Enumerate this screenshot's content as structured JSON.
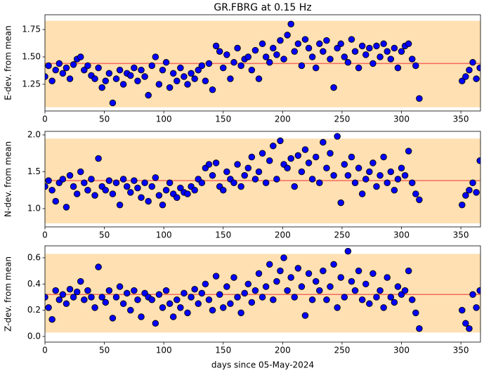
{
  "title": "GR.FBRG at 0.15 Hz",
  "chart_data": [
    {
      "type": "scatter",
      "ylabel": "E-dev. from mean",
      "color": "#0000ff",
      "band": [
        1.04,
        1.83
      ],
      "band_color": "#ffe0b2",
      "reference_line": 1.44,
      "line_color": "#f26b5b",
      "xlim": [
        0,
        366.5
      ],
      "ylim": [
        1.006,
        1.885
      ],
      "xticks": [
        0,
        50,
        100,
        150,
        200,
        250,
        300,
        350
      ],
      "yticks": [
        1.25,
        {
          "value": 1.5,
          "label": "1.50"
        },
        1.75
      ],
      "x": [
        0,
        3,
        6,
        9,
        12,
        15,
        18,
        21,
        24,
        27,
        30,
        33,
        36,
        39,
        42,
        45,
        48,
        51,
        54,
        57,
        60,
        63,
        66,
        69,
        72,
        75,
        78,
        81,
        84,
        87,
        90,
        93,
        96,
        99,
        102,
        105,
        108,
        111,
        114,
        117,
        120,
        123,
        126,
        129,
        132,
        135,
        138,
        141,
        144,
        147,
        150,
        153,
        156,
        159,
        162,
        165,
        168,
        171,
        174,
        177,
        180,
        183,
        186,
        189,
        192,
        195,
        198,
        201,
        204,
        207,
        210,
        213,
        216,
        219,
        222,
        225,
        228,
        231,
        234,
        237,
        240,
        243,
        246,
        249,
        252,
        255,
        258,
        261,
        264,
        267,
        270,
        273,
        276,
        279,
        282,
        285,
        288,
        291,
        294,
        297,
        300,
        303,
        306,
        309,
        312,
        315,
        351,
        354,
        357,
        360,
        363,
        366
      ],
      "values": [
        1.32,
        1.42,
        1.28,
        1.38,
        1.44,
        1.35,
        1.4,
        1.3,
        1.43,
        1.48,
        1.5,
        1.38,
        1.42,
        1.33,
        1.3,
        1.4,
        1.22,
        1.28,
        1.35,
        1.08,
        1.3,
        1.38,
        1.25,
        1.35,
        1.33,
        1.4,
        1.28,
        1.38,
        1.32,
        1.15,
        1.42,
        1.5,
        1.25,
        1.38,
        1.45,
        1.22,
        1.35,
        1.28,
        1.4,
        1.32,
        1.25,
        1.35,
        1.3,
        1.38,
        1.42,
        1.28,
        1.44,
        1.2,
        1.6,
        1.55,
        1.4,
        1.52,
        1.3,
        1.45,
        1.58,
        1.42,
        1.48,
        1.5,
        1.38,
        1.56,
        1.3,
        1.62,
        1.5,
        1.45,
        1.58,
        1.52,
        1.65,
        1.48,
        1.7,
        1.8,
        1.55,
        1.62,
        1.42,
        1.66,
        1.58,
        1.5,
        1.4,
        1.62,
        1.55,
        1.65,
        1.48,
        1.22,
        1.58,
        1.62,
        1.5,
        1.45,
        1.66,
        1.55,
        1.4,
        1.6,
        1.52,
        1.58,
        1.44,
        1.6,
        1.5,
        1.62,
        1.55,
        1.48,
        1.58,
        1.4,
        1.55,
        1.6,
        1.62,
        1.48,
        1.42,
        1.12,
        1.28,
        1.32,
        1.38,
        1.45,
        1.3,
        1.4
      ]
    },
    {
      "type": "scatter",
      "ylabel": "N-dev. from mean",
      "color": "#0000ff",
      "band": [
        0.8,
        1.95
      ],
      "band_color": "#ffe0b2",
      "reference_line": 1.38,
      "line_color": "#f26b5b",
      "xlim": [
        0,
        366.5
      ],
      "ylim": [
        0.752,
        2.048
      ],
      "xticks": [
        0,
        50,
        100,
        150,
        200,
        250,
        300,
        350
      ],
      "yticks": [
        {
          "value": 1.0,
          "label": "1.0"
        },
        {
          "value": 1.5,
          "label": "1.5"
        },
        {
          "value": 2.0,
          "label": "2.0"
        }
      ],
      "x": [
        0,
        3,
        6,
        9,
        12,
        15,
        18,
        21,
        24,
        27,
        30,
        33,
        36,
        39,
        42,
        45,
        48,
        51,
        54,
        57,
        60,
        63,
        66,
        69,
        72,
        75,
        78,
        81,
        84,
        87,
        90,
        93,
        96,
        99,
        102,
        105,
        108,
        111,
        114,
        117,
        120,
        123,
        126,
        129,
        132,
        135,
        138,
        141,
        144,
        147,
        150,
        153,
        156,
        159,
        162,
        165,
        168,
        171,
        174,
        177,
        180,
        183,
        186,
        189,
        192,
        195,
        198,
        201,
        204,
        207,
        210,
        213,
        216,
        219,
        222,
        225,
        228,
        231,
        234,
        237,
        240,
        243,
        246,
        249,
        252,
        255,
        258,
        261,
        264,
        267,
        270,
        273,
        276,
        279,
        282,
        285,
        288,
        291,
        294,
        297,
        300,
        303,
        306,
        309,
        312,
        315,
        351,
        354,
        357,
        360,
        363,
        366
      ],
      "values": [
        1.3,
        1.38,
        1.25,
        1.1,
        1.35,
        1.4,
        1.02,
        1.45,
        1.3,
        1.2,
        1.5,
        1.35,
        1.25,
        1.4,
        1.18,
        1.68,
        1.3,
        1.25,
        1.38,
        1.2,
        1.35,
        1.05,
        1.4,
        1.3,
        1.22,
        1.38,
        1.28,
        1.15,
        1.35,
        1.1,
        1.3,
        1.42,
        1.18,
        1.05,
        1.25,
        1.35,
        1.2,
        1.15,
        1.28,
        1.22,
        1.2,
        1.3,
        1.25,
        1.4,
        1.35,
        1.55,
        1.6,
        1.45,
        1.62,
        1.3,
        1.25,
        1.5,
        1.4,
        1.35,
        1.6,
        1.3,
        1.45,
        1.55,
        1.7,
        1.4,
        1.5,
        1.75,
        1.35,
        1.65,
        1.85,
        1.4,
        1.92,
        1.6,
        1.55,
        1.68,
        1.3,
        1.72,
        1.5,
        1.8,
        1.62,
        1.4,
        1.7,
        1.35,
        1.9,
        1.55,
        1.75,
        1.45,
        1.98,
        1.08,
        1.6,
        1.45,
        1.7,
        1.35,
        1.55,
        1.2,
        1.4,
        1.5,
        1.62,
        1.3,
        1.45,
        1.7,
        1.35,
        1.5,
        1.25,
        1.4,
        1.55,
        1.45,
        1.78,
        1.35,
        1.2,
        1.12,
        1.05,
        1.18,
        1.25,
        1.35,
        1.22,
        1.65
      ]
    },
    {
      "type": "scatter",
      "ylabel": "Z-dev. from mean",
      "xlabel": "days since 05-May-2024",
      "color": "#0000ff",
      "band": [
        0.03,
        0.63
      ],
      "band_color": "#ffe0b2",
      "reference_line": 0.32,
      "line_color": "#f26b5b",
      "xlim": [
        0,
        366.5
      ],
      "ylim": [
        -0.043,
        0.691
      ],
      "xticks": [
        0,
        50,
        100,
        150,
        200,
        250,
        300,
        350
      ],
      "yticks": [
        {
          "value": 0.0,
          "label": "0.0"
        },
        0.2,
        0.4,
        0.6
      ],
      "x": [
        0,
        3,
        6,
        9,
        12,
        15,
        18,
        21,
        24,
        27,
        30,
        33,
        36,
        39,
        42,
        45,
        48,
        51,
        54,
        57,
        60,
        63,
        66,
        69,
        72,
        75,
        78,
        81,
        84,
        87,
        90,
        93,
        96,
        99,
        102,
        105,
        108,
        111,
        114,
        117,
        120,
        123,
        126,
        129,
        132,
        135,
        138,
        141,
        144,
        147,
        150,
        153,
        156,
        159,
        162,
        165,
        168,
        171,
        174,
        177,
        180,
        183,
        186,
        189,
        192,
        195,
        198,
        201,
        204,
        207,
        210,
        213,
        216,
        219,
        222,
        225,
        228,
        231,
        234,
        237,
        240,
        243,
        246,
        249,
        252,
        255,
        258,
        261,
        264,
        267,
        270,
        273,
        276,
        279,
        282,
        285,
        288,
        291,
        294,
        297,
        300,
        303,
        306,
        309,
        312,
        315,
        351,
        354,
        357,
        360,
        363,
        366
      ],
      "values": [
        0.3,
        0.22,
        0.13,
        0.35,
        0.28,
        0.32,
        0.25,
        0.36,
        0.3,
        0.34,
        0.42,
        0.28,
        0.35,
        0.3,
        0.22,
        0.53,
        0.3,
        0.26,
        0.35,
        0.14,
        0.3,
        0.38,
        0.25,
        0.33,
        0.2,
        0.35,
        0.28,
        0.15,
        0.33,
        0.3,
        0.28,
        0.1,
        0.32,
        0.22,
        0.35,
        0.25,
        0.15,
        0.28,
        0.22,
        0.33,
        0.18,
        0.3,
        0.36,
        0.25,
        0.33,
        0.4,
        0.28,
        0.2,
        0.46,
        0.32,
        0.22,
        0.38,
        0.25,
        0.45,
        0.3,
        0.18,
        0.33,
        0.4,
        0.26,
        0.35,
        0.48,
        0.3,
        0.38,
        0.55,
        0.28,
        0.42,
        0.5,
        0.6,
        0.35,
        0.45,
        0.3,
        0.52,
        0.38,
        0.16,
        0.48,
        0.28,
        0.42,
        0.35,
        0.5,
        0.28,
        0.38,
        0.55,
        0.22,
        0.45,
        0.3,
        0.65,
        0.42,
        0.35,
        0.5,
        0.28,
        0.4,
        0.25,
        0.48,
        0.3,
        0.35,
        0.22,
        0.45,
        0.3,
        0.26,
        0.38,
        0.32,
        0.35,
        0.5,
        0.28,
        0.18,
        0.06,
        0.2,
        0.1,
        0.06,
        0.32,
        0.22,
        0.35
      ]
    }
  ]
}
